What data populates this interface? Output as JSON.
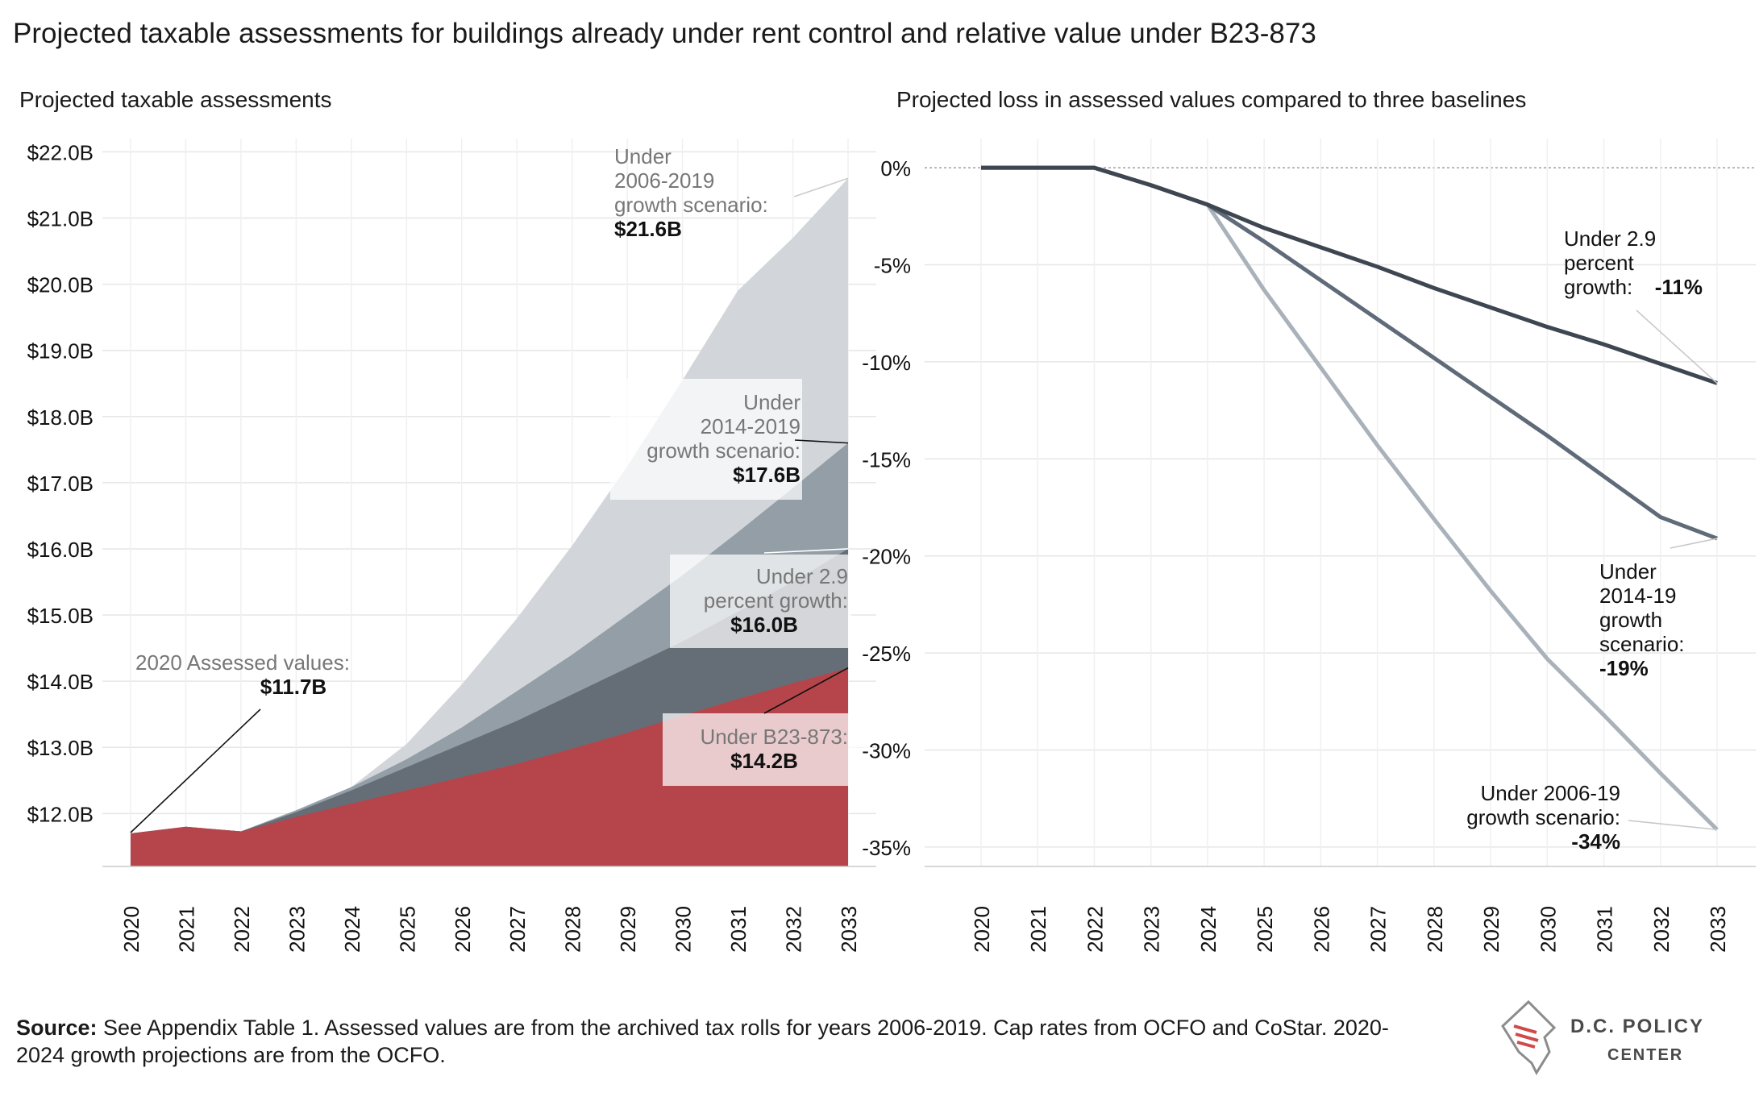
{
  "title": "Projected taxable assessments for buildings already under rent control and relative value under B23-873",
  "source": {
    "label": "Source:",
    "text": "See Appendix Table 1. Assessed values are from the archived tax rolls for years 2006-2019. Cap rates from OCFO and CoStar. 2020-2024 growth projections are from the OCFO."
  },
  "logo": {
    "line1": "D.C. POLICY",
    "line2": "CENTER"
  },
  "colors": {
    "b23": "#b5454b",
    "growth29": "#656e77",
    "s2014": "#939ea7",
    "s2006": "#d2d6da",
    "line29": "#3d4651",
    "line2014": "#5f6b78",
    "line2006": "#a9b2ba"
  },
  "chart_data": [
    {
      "type": "area",
      "title": "Projected taxable assessments",
      "x": [
        2020,
        2021,
        2022,
        2023,
        2024,
        2025,
        2026,
        2027,
        2028,
        2029,
        2030,
        2031,
        2032,
        2033
      ],
      "ylim": [
        11.2,
        22.2
      ],
      "yticks": [
        "$12.0B",
        "$13.0B",
        "$14.0B",
        "$15.0B",
        "$16.0B",
        "$17.0B",
        "$18.0B",
        "$19.0B",
        "$20.0B",
        "$21.0B",
        "$22.0B"
      ],
      "ytick_values": [
        12,
        13,
        14,
        15,
        16,
        17,
        18,
        19,
        20,
        21,
        22
      ],
      "series": [
        {
          "key": "s2006",
          "values": [
            11.7,
            11.8,
            11.73,
            12.05,
            12.4,
            13.05,
            13.95,
            14.95,
            16.05,
            17.25,
            18.55,
            19.9,
            20.7,
            21.6
          ]
        },
        {
          "key": "s2014",
          "values": [
            11.7,
            11.8,
            11.73,
            12.05,
            12.4,
            12.82,
            13.3,
            13.85,
            14.4,
            15.0,
            15.6,
            16.25,
            16.92,
            17.6
          ]
        },
        {
          "key": "growth29",
          "values": [
            11.7,
            11.8,
            11.73,
            12.02,
            12.35,
            12.7,
            13.05,
            13.4,
            13.8,
            14.2,
            14.6,
            15.05,
            15.5,
            16.0
          ]
        },
        {
          "key": "b23",
          "values": [
            11.7,
            11.8,
            11.73,
            11.95,
            12.15,
            12.35,
            12.55,
            12.75,
            12.98,
            13.22,
            13.48,
            13.73,
            13.97,
            14.2
          ]
        }
      ],
      "annotations": [
        {
          "key": "a2020",
          "lines": [
            "2020 Assessed values:"
          ],
          "value": "$11.7B"
        },
        {
          "key": "a2006",
          "lines": [
            "Under",
            "2006-2019",
            "growth scenario:"
          ],
          "value": "$21.6B"
        },
        {
          "key": "a2014",
          "lines": [
            "Under",
            "2014-2019",
            "growth scenario:"
          ],
          "value": "$17.6B"
        },
        {
          "key": "a29",
          "lines": [
            "Under 2.9",
            "percent growth:"
          ],
          "value": "$16.0B"
        },
        {
          "key": "ab23",
          "lines": [
            "Under B23-873:"
          ],
          "value": "$14.2B"
        }
      ]
    },
    {
      "type": "line",
      "title": "Projected loss in assessed values compared to three baselines",
      "x": [
        2020,
        2021,
        2022,
        2023,
        2024,
        2025,
        2026,
        2027,
        2028,
        2029,
        2030,
        2031,
        2032,
        2033
      ],
      "ylim": [
        -36,
        1.5
      ],
      "yticks": [
        "0%",
        "-5%",
        "-10%",
        "-15%",
        "-20%",
        "-25%",
        "-30%",
        "-35%"
      ],
      "ytick_values": [
        0,
        -5,
        -10,
        -15,
        -20,
        -25,
        -30,
        -35
      ],
      "series": [
        {
          "key": "line29",
          "values": [
            0,
            0,
            0,
            -0.9,
            -1.9,
            -3.1,
            -4.1,
            -5.1,
            -6.2,
            -7.2,
            -8.2,
            -9.1,
            -10.1,
            -11.1
          ]
        },
        {
          "key": "line2014",
          "values": [
            0,
            0,
            0,
            -0.9,
            -1.9,
            -3.8,
            -5.8,
            -7.8,
            -9.8,
            -11.8,
            -13.8,
            -15.9,
            -18.0,
            -19.1
          ]
        },
        {
          "key": "line2006",
          "values": [
            0,
            0,
            0,
            -0.9,
            -1.9,
            -6.3,
            -10.3,
            -14.3,
            -18.1,
            -21.8,
            -25.3,
            -28.2,
            -31.2,
            -34.1
          ]
        }
      ],
      "annotations": [
        {
          "key": "r29",
          "lines": [
            "Under 2.9",
            "percent",
            "growth:"
          ],
          "value": "-11%"
        },
        {
          "key": "r2014",
          "lines": [
            "Under",
            "2014-19",
            "growth",
            "scenario:"
          ],
          "value": "-19%"
        },
        {
          "key": "r2006",
          "lines": [
            "Under 2006-19",
            "growth scenario:"
          ],
          "value": "-34%"
        }
      ]
    }
  ]
}
